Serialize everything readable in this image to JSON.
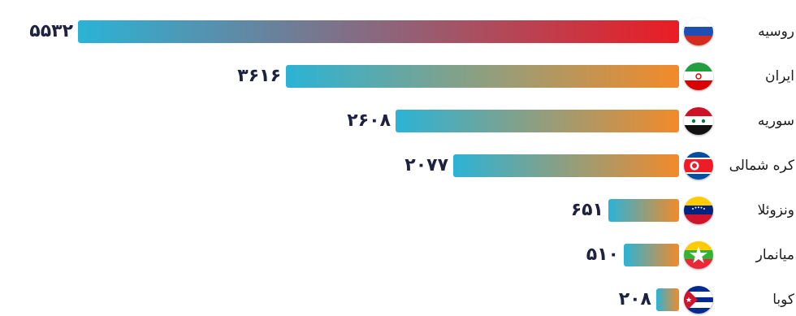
{
  "chart_data": {
    "type": "bar",
    "orientation": "horizontal",
    "categories": [
      "روسیه",
      "ایران",
      "سوریه",
      "کره شمالی",
      "ونزوئلا",
      "میانمار",
      "کوبا"
    ],
    "values": [
      5532,
      3616,
      2608,
      2077,
      651,
      510,
      208
    ],
    "value_labels": [
      "۵۵۳۲",
      "۳۶۱۶",
      "۲۶۰۸",
      "۲۰۷۷",
      "۶۵۱",
      "۵۱۰",
      "۲۰۸"
    ],
    "xlim": [
      0,
      5532
    ],
    "grid": false,
    "legend": "none",
    "colors": {
      "bar_start": "#2bb3d6",
      "bar_end_default": "#f28a2a",
      "bar_end_top": "#ea1c24",
      "value_text": "#1e2240"
    },
    "flags": [
      "russia-flag",
      "iran-flag",
      "syria-flag",
      "north-korea-flag",
      "venezuela-flag",
      "myanmar-flag",
      "cuba-flag"
    ]
  }
}
